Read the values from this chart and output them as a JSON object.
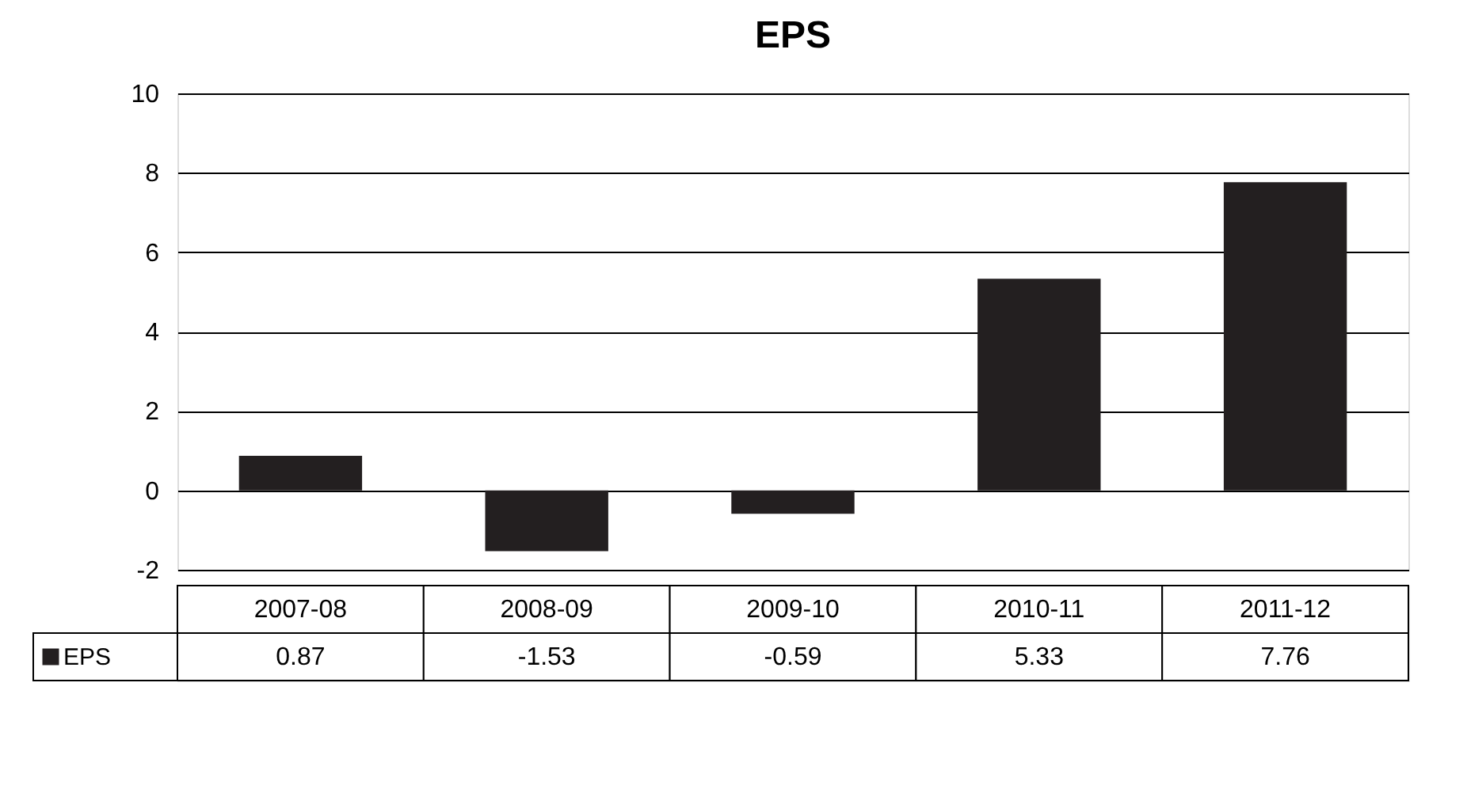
{
  "chart_data": {
    "type": "bar",
    "title": "EPS",
    "categories": [
      "2007-08",
      "2008-09",
      "2009-10",
      "2010-11",
      "2011-12"
    ],
    "series": [
      {
        "name": "EPS",
        "color": "#231f20",
        "values": [
          0.87,
          -1.53,
          -0.59,
          5.33,
          7.76
        ]
      }
    ],
    "ylim": [
      -2,
      10
    ],
    "yticks": [
      -2,
      0,
      2,
      4,
      6,
      8,
      10
    ],
    "grid": "y",
    "legend": "bottom",
    "data_labels": true
  }
}
